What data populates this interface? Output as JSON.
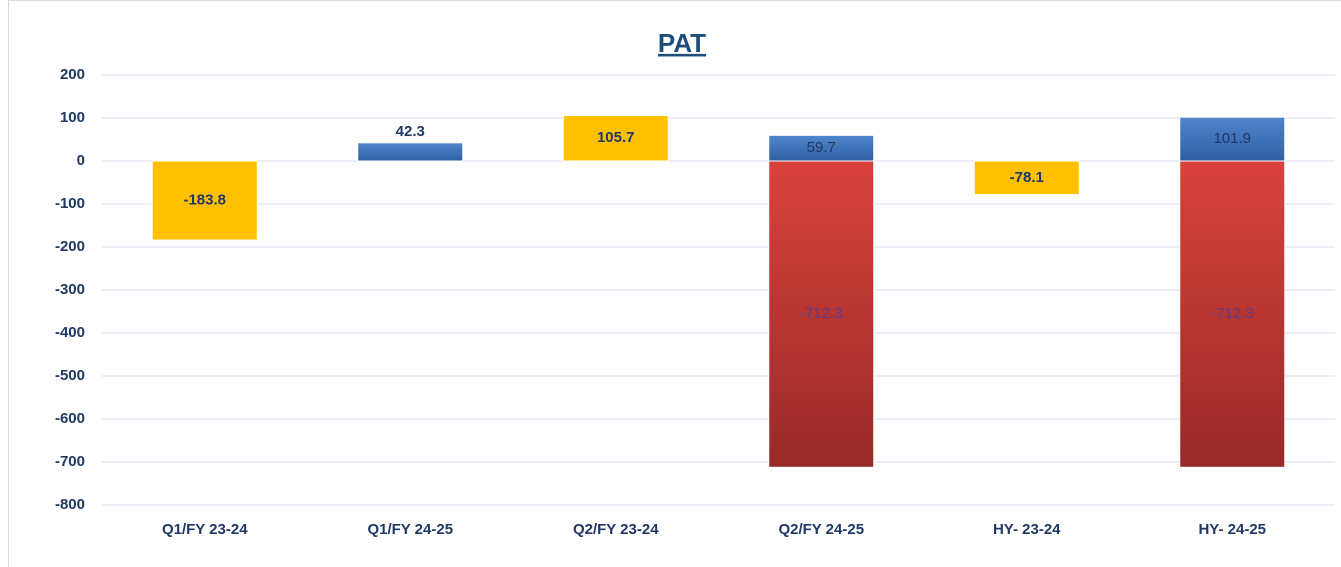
{
  "chart_data": {
    "type": "stacked_bar",
    "title": "PAT",
    "categories": [
      "Q1/FY 23-24",
      "Q1/FY 24-25",
      "Q2/FY 23-24",
      "Q2/FY 24-25",
      "HY- 23-24",
      "HY- 24-25"
    ],
    "series": [
      {
        "color": "#ffc000",
        "values": [
          -183.8,
          null,
          105.7,
          null,
          -78.1,
          null
        ]
      },
      {
        "color": "#3f74b8",
        "values": [
          null,
          42.3,
          null,
          59.7,
          null,
          101.9
        ]
      },
      {
        "color": "#c9383a",
        "values": [
          null,
          null,
          null,
          -712.3,
          null,
          -712.3
        ]
      }
    ],
    "ylim": [
      -800,
      200
    ],
    "yticks": [
      -800,
      -700,
      -600,
      -500,
      -400,
      -300,
      -200,
      -100,
      0,
      100,
      200
    ],
    "grid": true
  }
}
